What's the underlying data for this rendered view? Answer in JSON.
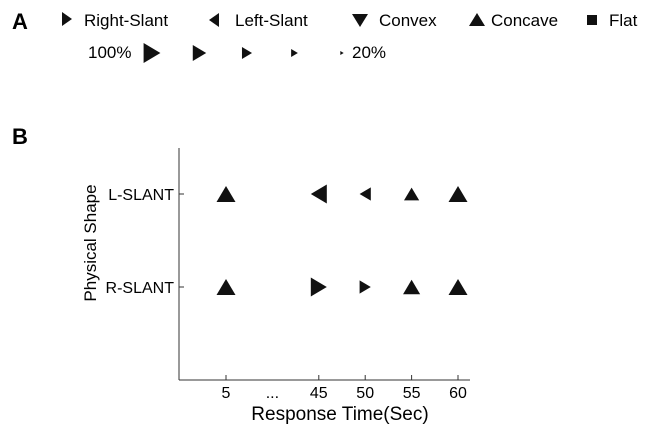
{
  "panel_a": {
    "label": "A",
    "legend": [
      {
        "shape": "right-triangle",
        "label": "Right-Slant"
      },
      {
        "shape": "left-triangle",
        "label": "Left-Slant"
      },
      {
        "shape": "down-triangle",
        "label": "Convex"
      },
      {
        "shape": "up-triangle",
        "label": "Concave"
      },
      {
        "shape": "square",
        "label": "Flat"
      }
    ],
    "scale": {
      "max_label": "100%",
      "min_label": "20%",
      "levels": [
        1.0,
        0.8,
        0.6,
        0.4,
        0.2
      ]
    }
  },
  "panel_b": {
    "label": "B"
  },
  "chart_data": {
    "type": "scatter",
    "title": "",
    "xlabel": "Response Time(Sec)",
    "ylabel": "Physical Shape",
    "x_ticks": [
      "5",
      "...",
      "45",
      "50",
      "55",
      "60"
    ],
    "y_categories": [
      "L-SLANT",
      "R-SLANT"
    ],
    "grid": false,
    "series": [
      {
        "category": "L-SLANT",
        "points": [
          {
            "x": "5",
            "shape": "up-triangle",
            "size": 1.0
          },
          {
            "x": "45",
            "shape": "left-triangle",
            "size": 1.0
          },
          {
            "x": "50",
            "shape": "left-triangle",
            "size": 0.7
          },
          {
            "x": "55",
            "shape": "up-triangle",
            "size": 0.8
          },
          {
            "x": "60",
            "shape": "up-triangle",
            "size": 1.0
          }
        ]
      },
      {
        "category": "R-SLANT",
        "points": [
          {
            "x": "5",
            "shape": "up-triangle",
            "size": 1.0
          },
          {
            "x": "45",
            "shape": "right-triangle",
            "size": 1.0
          },
          {
            "x": "50",
            "shape": "right-triangle",
            "size": 0.7
          },
          {
            "x": "55",
            "shape": "up-triangle",
            "size": 0.9
          },
          {
            "x": "60",
            "shape": "up-triangle",
            "size": 1.0
          }
        ]
      }
    ]
  }
}
